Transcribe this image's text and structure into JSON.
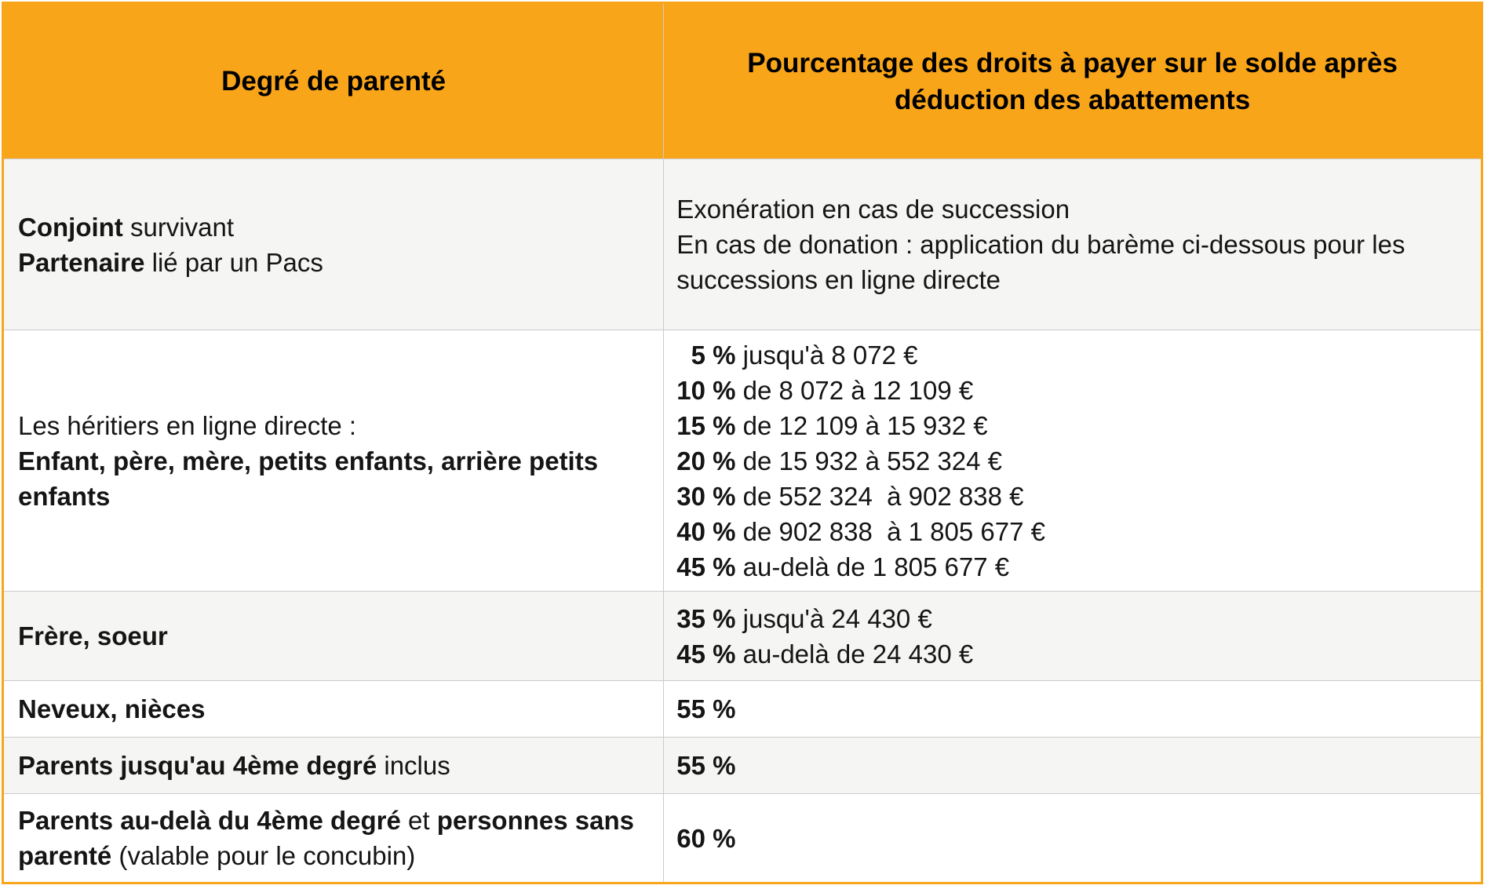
{
  "meta": {
    "accent_orange": "#F9A51A",
    "row_alt_bg": "#F5F5F3",
    "row_bg": "#FFFFFF",
    "grid_line_color": "#CBCBCB",
    "text_color": "#151515"
  },
  "table": {
    "header": {
      "col1": "Degré de parenté",
      "col2": "Pourcentage des droits à payer sur le solde après déduction des abattements"
    },
    "rows": [
      {
        "name": "conjoint-pacs",
        "left": [
          [
            {
              "t": "Conjoint",
              "b": true
            },
            {
              "t": " survivant"
            }
          ],
          [
            {
              "t": "Partenaire",
              "b": true
            },
            {
              "t": " lié par un Pacs"
            }
          ]
        ],
        "right": [
          [
            {
              "t": "Exonération en cas de succession"
            }
          ],
          [
            {
              "t": "En cas de donation : application du barème ci-dessous pour les successions en ligne directe"
            }
          ]
        ]
      },
      {
        "name": "heritiers-ligne-directe",
        "left": [
          [
            {
              "t": "Les héritiers en ligne directe :"
            }
          ],
          [
            {
              "t": "Enfant, père, mère, petits enfants, arrière petits enfants",
              "b": true
            }
          ]
        ],
        "right": [
          [
            {
              "t": "  5 %",
              "b": true
            },
            {
              "t": " jusqu'à 8 072 €"
            }
          ],
          [
            {
              "t": "10 %",
              "b": true
            },
            {
              "t": " de 8 072 à 12 109 €"
            }
          ],
          [
            {
              "t": "15 %",
              "b": true
            },
            {
              "t": " de 12 109 à 15 932 €"
            }
          ],
          [
            {
              "t": "20 %",
              "b": true
            },
            {
              "t": " de 15 932 à 552 324 €"
            }
          ],
          [
            {
              "t": "30 %",
              "b": true
            },
            {
              "t": " de 552 324  à 902 838 €"
            }
          ],
          [
            {
              "t": "40 %",
              "b": true
            },
            {
              "t": " de 902 838  à 1 805 677 €"
            }
          ],
          [
            {
              "t": "45 %",
              "b": true
            },
            {
              "t": " au-delà de 1 805 677 €"
            }
          ]
        ]
      },
      {
        "name": "frere-soeur",
        "left": [
          [
            {
              "t": "Frère, soeur",
              "b": true
            }
          ]
        ],
        "right": [
          [
            {
              "t": "35 %",
              "b": true
            },
            {
              "t": " jusqu'à 24 430 €"
            }
          ],
          [
            {
              "t": "45 %",
              "b": true
            },
            {
              "t": " au-delà de 24 430 €"
            }
          ]
        ]
      },
      {
        "name": "neveux-nieces",
        "left": [
          [
            {
              "t": "Neveux, nièces",
              "b": true
            }
          ]
        ],
        "right": [
          [
            {
              "t": "55 %",
              "b": true
            }
          ]
        ]
      },
      {
        "name": "parents-jusquau-4eme-degre",
        "left": [
          [
            {
              "t": "Parents jusqu'au 4ème degré",
              "b": true
            },
            {
              "t": " inclus"
            }
          ]
        ],
        "right": [
          [
            {
              "t": "55 %",
              "b": true
            }
          ]
        ]
      },
      {
        "name": "parents-au-dela-4eme-degre",
        "left": [
          [
            {
              "t": "Parents au-delà du 4ème degré",
              "b": true
            },
            {
              "t": " et "
            },
            {
              "t": "personnes sans parenté",
              "b": true
            },
            {
              "t": " (valable pour le concubin)"
            }
          ]
        ],
        "right": [
          [
            {
              "t": "60 %",
              "b": true
            }
          ]
        ]
      }
    ]
  }
}
